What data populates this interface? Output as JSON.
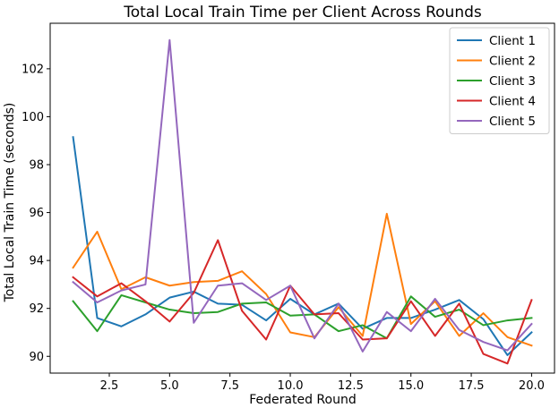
{
  "chart_data": {
    "type": "line",
    "title": "Total Local Train Time per Client Across Rounds",
    "xlabel": "Federated Round",
    "ylabel": "Total Local Train Time (seconds)",
    "xlim": [
      0.05,
      20.95
    ],
    "ylim": [
      89.3,
      103.9
    ],
    "xticks": [
      2.5,
      5.0,
      7.5,
      10.0,
      12.5,
      15.0,
      17.5,
      20.0
    ],
    "xtick_labels": [
      "2.5",
      "5.0",
      "7.5",
      "10.0",
      "12.5",
      "15.0",
      "17.5",
      "20.0"
    ],
    "yticks": [
      90,
      92,
      94,
      96,
      98,
      100,
      102
    ],
    "ytick_labels": [
      "90",
      "92",
      "94",
      "96",
      "98",
      "100",
      "102"
    ],
    "grid": false,
    "legend_position": "top-right",
    "x": [
      1,
      2,
      3,
      4,
      5,
      6,
      7,
      8,
      9,
      10,
      11,
      12,
      13,
      14,
      15,
      16,
      17,
      18,
      19,
      20
    ],
    "series": [
      {
        "name": "Client 1",
        "color": "#1f77b4",
        "values": [
          99.15,
          91.6,
          91.25,
          91.75,
          92.45,
          92.7,
          92.2,
          92.15,
          91.5,
          92.4,
          91.75,
          92.2,
          91.15,
          91.6,
          91.6,
          91.95,
          92.35,
          91.55,
          90.05,
          91.0
        ]
      },
      {
        "name": "Client 2",
        "color": "#ff7f0e",
        "values": [
          93.7,
          95.2,
          92.8,
          93.3,
          92.95,
          93.1,
          93.15,
          93.55,
          92.6,
          91.0,
          90.8,
          92.05,
          90.85,
          95.95,
          91.35,
          92.3,
          90.85,
          91.8,
          90.8,
          90.45
        ]
      },
      {
        "name": "Client 3",
        "color": "#2ca02c",
        "values": [
          92.3,
          91.05,
          92.55,
          92.25,
          91.95,
          91.8,
          91.85,
          92.2,
          92.25,
          91.7,
          91.75,
          91.05,
          91.3,
          90.75,
          92.5,
          91.65,
          91.95,
          91.3,
          91.5,
          91.6
        ]
      },
      {
        "name": "Client 4",
        "color": "#d62728",
        "values": [
          93.3,
          92.5,
          93.05,
          92.3,
          91.45,
          92.65,
          94.85,
          91.9,
          90.7,
          92.95,
          91.75,
          91.8,
          90.7,
          90.75,
          92.3,
          90.85,
          92.2,
          90.1,
          89.7,
          92.35
        ]
      },
      {
        "name": "Client 5",
        "color": "#9467bd",
        "values": [
          93.1,
          92.25,
          92.75,
          93.0,
          103.2,
          91.4,
          92.95,
          93.05,
          92.35,
          92.95,
          90.75,
          92.2,
          90.2,
          91.85,
          91.05,
          92.4,
          91.1,
          90.6,
          90.25,
          91.35
        ]
      }
    ]
  }
}
